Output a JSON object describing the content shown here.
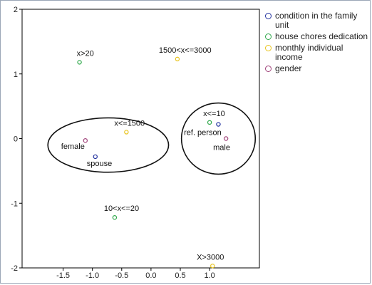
{
  "chart_data": {
    "type": "scatter",
    "title": "",
    "xlabel": "",
    "ylabel": "",
    "xlim": [
      -2.2,
      1.85
    ],
    "ylim": [
      -2.0,
      2.0
    ],
    "x_ticks": [
      "-1.5",
      "-1.0",
      "-0.5",
      "0.0",
      "0.5",
      "1.0"
    ],
    "y_ticks": [
      "2",
      "1",
      "0",
      "-1",
      "-2"
    ],
    "grid": false,
    "legend_position": "right",
    "series": [
      {
        "name": "condition in the family unit",
        "color": "#1f2f9e",
        "points": [
          {
            "x": 1.15,
            "y": 0.22,
            "label": ""
          },
          {
            "x": -0.95,
            "y": -0.28,
            "label": "spouse"
          }
        ]
      },
      {
        "name": "house chores dedication",
        "color": "#2ea84a",
        "points": [
          {
            "x": -1.22,
            "y": 1.18,
            "label": "x>20"
          },
          {
            "x": 1.0,
            "y": 0.25,
            "label": "x<=10"
          },
          {
            "x": -0.62,
            "y": -1.22,
            "label": "10<x<=20"
          }
        ]
      },
      {
        "name": "monthly individual income",
        "color": "#e8c31a",
        "points": [
          {
            "x": 0.45,
            "y": 1.23,
            "label": "1500<x<=3000"
          },
          {
            "x": -0.42,
            "y": 0.1,
            "label": "x<=1500"
          },
          {
            "x": 1.05,
            "y": -1.97,
            "label": "X>3000"
          }
        ]
      },
      {
        "name": "gender",
        "color": "#a0427a",
        "points": [
          {
            "x": -1.12,
            "y": -0.03,
            "label": "female"
          },
          {
            "x": 1.28,
            "y": 0.0,
            "label": "male"
          }
        ]
      }
    ],
    "annotations": [
      {
        "text": "ref. person",
        "x": 1.0,
        "y": 0.1
      }
    ],
    "ellipses": [
      {
        "cx": -0.73,
        "cy": -0.1,
        "rx": 1.03,
        "ry": 0.42
      },
      {
        "cx": 1.15,
        "cy": 0.0,
        "rx": 0.63,
        "ry": 0.55
      }
    ]
  }
}
